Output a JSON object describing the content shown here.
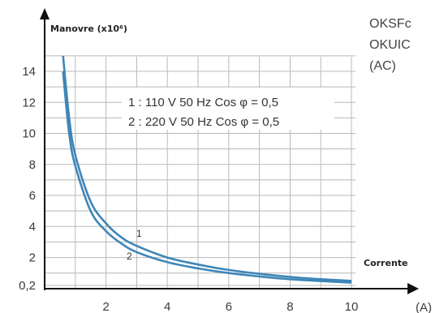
{
  "chart_data": {
    "type": "line",
    "ylabel": "Manovre (x10⁶)",
    "xlabel": "Corrente",
    "xunit": "(A)",
    "corner_labels": [
      "OKSFc",
      "OKUIC",
      "(AC)"
    ],
    "x_ticks": [
      "2",
      "4",
      "6",
      "8",
      "10"
    ],
    "y_ticks": [
      "0,2",
      "2",
      "4",
      "6",
      "8",
      "10",
      "12",
      "14"
    ],
    "y_tick_values": [
      0.2,
      2,
      4,
      6,
      8,
      10,
      12,
      14
    ],
    "xlim": [
      0,
      10
    ],
    "ylim": [
      0.2,
      14
    ],
    "grid": true,
    "legend": [
      "1 : 110 V 50 Hz Cos φ = 0,5",
      "2 : 220 V 50 Hz Cos φ = 0,5"
    ],
    "series": [
      {
        "name": "1",
        "x": [
          0.6,
          0.8,
          1.0,
          1.5,
          2.0,
          2.5,
          3.0,
          4.0,
          5.0,
          6.0,
          7.0,
          8.0,
          9.0,
          10.0
        ],
        "y": [
          15.0,
          11.0,
          8.6,
          5.6,
          4.2,
          3.3,
          2.75,
          2.0,
          1.55,
          1.2,
          0.95,
          0.75,
          0.6,
          0.5
        ]
      },
      {
        "name": "2",
        "x": [
          0.6,
          0.8,
          1.0,
          1.5,
          2.0,
          2.5,
          3.0,
          4.0,
          5.0,
          6.0,
          7.0,
          8.0,
          9.0,
          10.0
        ],
        "y": [
          14.0,
          10.0,
          7.9,
          5.0,
          3.7,
          2.9,
          2.35,
          1.7,
          1.3,
          1.0,
          0.78,
          0.6,
          0.48,
          0.38
        ]
      }
    ],
    "curve_labels": [
      "1",
      "2"
    ]
  },
  "colors": {
    "curve": "#3f86b8",
    "grid": "#b8b8b8",
    "axis": "#111111"
  }
}
